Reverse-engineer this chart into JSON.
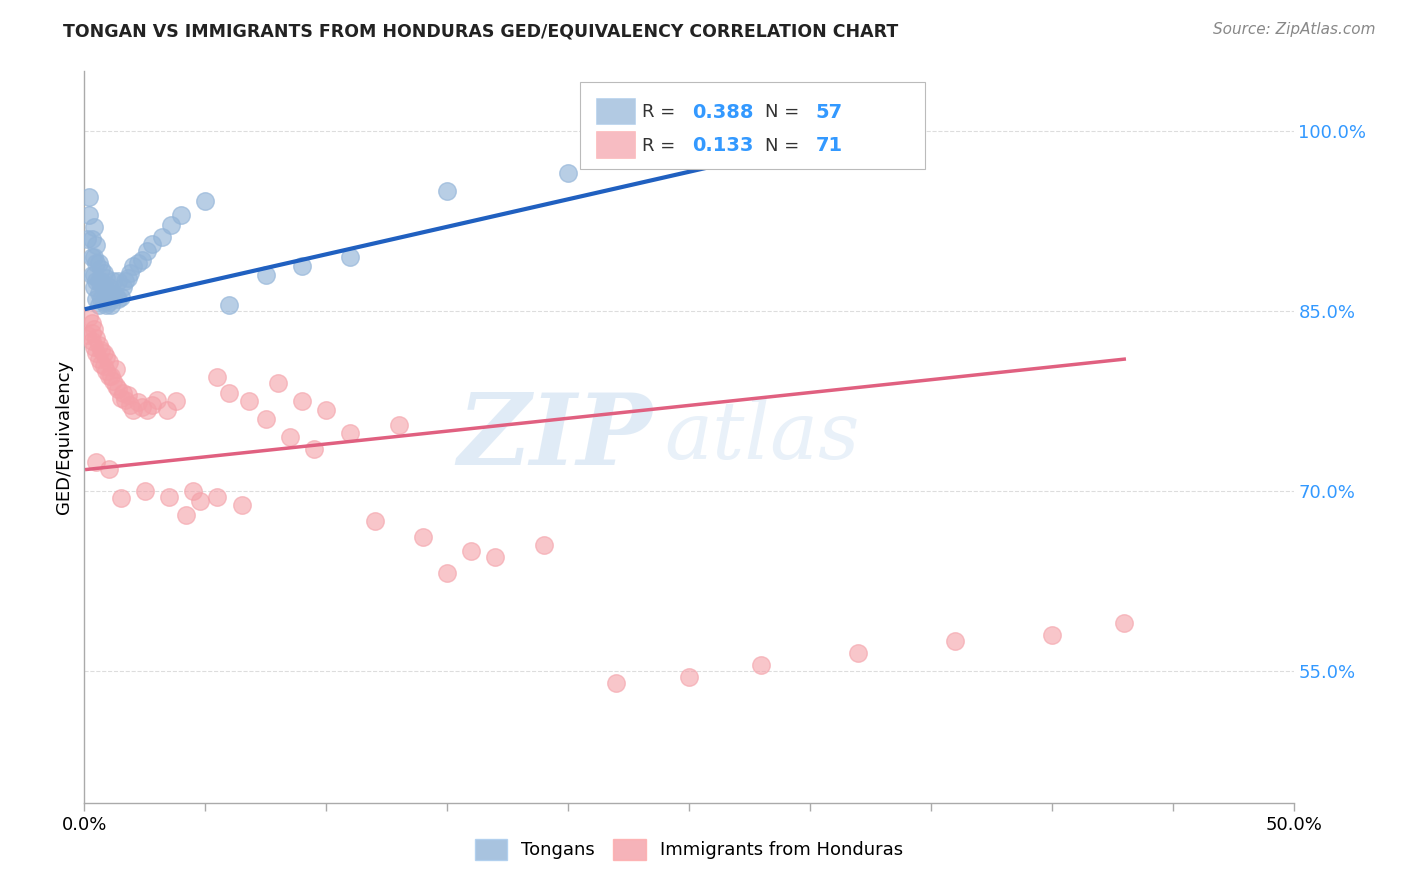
{
  "title": "TONGAN VS IMMIGRANTS FROM HONDURAS GED/EQUIVALENCY CORRELATION CHART",
  "source": "Source: ZipAtlas.com",
  "ylabel": "GED/Equivalency",
  "ytick_labels": [
    "100.0%",
    "85.0%",
    "70.0%",
    "55.0%"
  ],
  "ytick_values": [
    1.0,
    0.85,
    0.7,
    0.55
  ],
  "xlim": [
    0.0,
    0.5
  ],
  "ylim": [
    0.44,
    1.05
  ],
  "legend_blue_R": "0.388",
  "legend_blue_N": "57",
  "legend_pink_R": "0.133",
  "legend_pink_N": "71",
  "legend_label_blue": "Tongans",
  "legend_label_pink": "Immigrants from Honduras",
  "blue_color": "#92B4D8",
  "pink_color": "#F4A0A8",
  "trendline_blue": "#2060C0",
  "trendline_pink": "#E06080",
  "watermark_zip": "ZIP",
  "watermark_atlas": "atlas",
  "blue_scatter_x": [
    0.001,
    0.002,
    0.002,
    0.003,
    0.003,
    0.003,
    0.004,
    0.004,
    0.004,
    0.004,
    0.005,
    0.005,
    0.005,
    0.005,
    0.006,
    0.006,
    0.006,
    0.006,
    0.007,
    0.007,
    0.007,
    0.008,
    0.008,
    0.008,
    0.009,
    0.009,
    0.009,
    0.01,
    0.01,
    0.011,
    0.011,
    0.012,
    0.012,
    0.013,
    0.014,
    0.014,
    0.015,
    0.016,
    0.017,
    0.018,
    0.019,
    0.02,
    0.022,
    0.024,
    0.026,
    0.028,
    0.032,
    0.036,
    0.04,
    0.05,
    0.06,
    0.075,
    0.09,
    0.11,
    0.15,
    0.2,
    0.28
  ],
  "blue_scatter_y": [
    0.91,
    0.93,
    0.945,
    0.88,
    0.895,
    0.91,
    0.87,
    0.88,
    0.895,
    0.92,
    0.86,
    0.875,
    0.89,
    0.905,
    0.855,
    0.865,
    0.875,
    0.89,
    0.86,
    0.875,
    0.885,
    0.858,
    0.87,
    0.882,
    0.855,
    0.865,
    0.878,
    0.858,
    0.87,
    0.855,
    0.865,
    0.862,
    0.875,
    0.863,
    0.86,
    0.875,
    0.862,
    0.87,
    0.875,
    0.878,
    0.882,
    0.888,
    0.89,
    0.893,
    0.9,
    0.906,
    0.912,
    0.922,
    0.93,
    0.942,
    0.855,
    0.88,
    0.888,
    0.895,
    0.95,
    0.965,
    0.98
  ],
  "blue_trendline_x": [
    0.001,
    0.28
  ],
  "blue_trendline_y": [
    0.852,
    0.98
  ],
  "pink_scatter_x": [
    0.001,
    0.002,
    0.003,
    0.003,
    0.004,
    0.004,
    0.005,
    0.005,
    0.006,
    0.006,
    0.007,
    0.007,
    0.008,
    0.008,
    0.009,
    0.009,
    0.01,
    0.01,
    0.011,
    0.012,
    0.013,
    0.013,
    0.014,
    0.015,
    0.016,
    0.017,
    0.018,
    0.019,
    0.02,
    0.022,
    0.024,
    0.026,
    0.028,
    0.03,
    0.034,
    0.038,
    0.042,
    0.048,
    0.055,
    0.06,
    0.068,
    0.075,
    0.085,
    0.095,
    0.11,
    0.13,
    0.15,
    0.17,
    0.19,
    0.22,
    0.25,
    0.28,
    0.32,
    0.36,
    0.4,
    0.43,
    0.1,
    0.12,
    0.14,
    0.16,
    0.08,
    0.09,
    0.065,
    0.055,
    0.045,
    0.035,
    0.025,
    0.015,
    0.01,
    0.005,
    0.003
  ],
  "pink_scatter_y": [
    0.83,
    0.845,
    0.825,
    0.84,
    0.82,
    0.835,
    0.815,
    0.828,
    0.81,
    0.822,
    0.806,
    0.818,
    0.804,
    0.815,
    0.8,
    0.812,
    0.796,
    0.808,
    0.796,
    0.792,
    0.788,
    0.802,
    0.785,
    0.778,
    0.782,
    0.776,
    0.78,
    0.772,
    0.768,
    0.774,
    0.77,
    0.768,
    0.772,
    0.776,
    0.768,
    0.775,
    0.68,
    0.692,
    0.795,
    0.782,
    0.775,
    0.76,
    0.745,
    0.735,
    0.748,
    0.755,
    0.632,
    0.645,
    0.655,
    0.54,
    0.545,
    0.555,
    0.565,
    0.575,
    0.58,
    0.59,
    0.768,
    0.675,
    0.662,
    0.65,
    0.79,
    0.775,
    0.688,
    0.695,
    0.7,
    0.695,
    0.7,
    0.694,
    0.718,
    0.724,
    0.832
  ],
  "pink_trendline_x": [
    0.001,
    0.43
  ],
  "pink_trendline_y": [
    0.718,
    0.81
  ]
}
